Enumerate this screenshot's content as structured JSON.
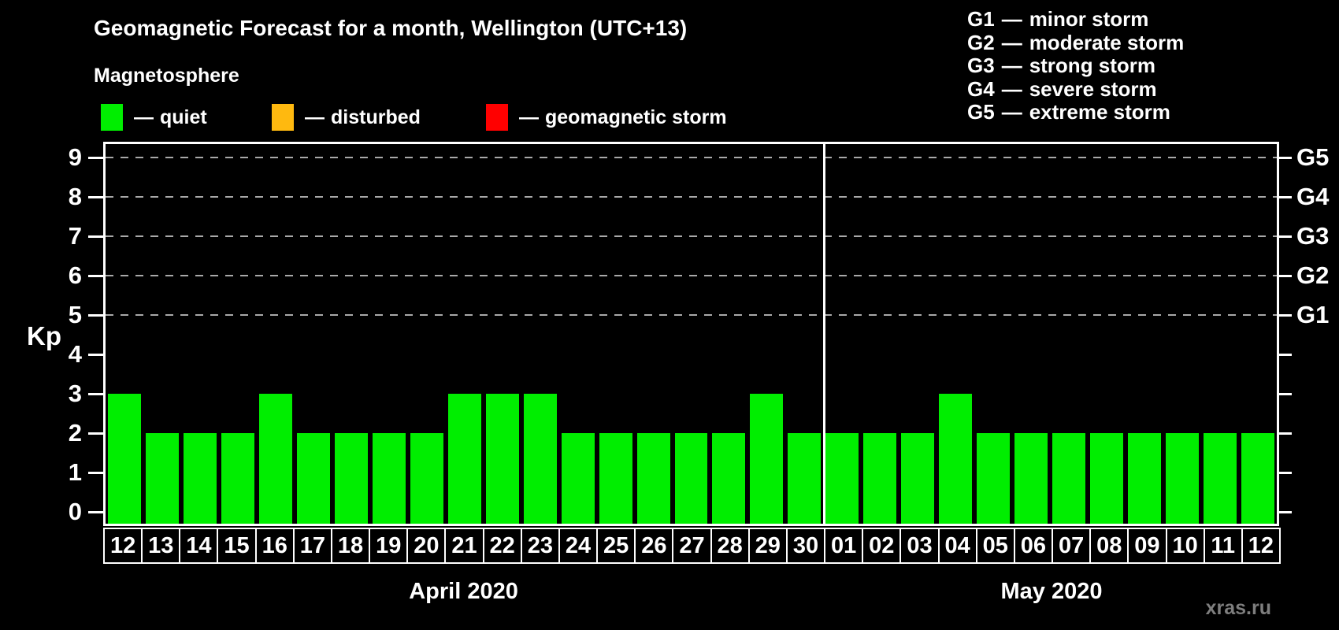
{
  "page": {
    "title": "Geomagnetic Forecast for a month, Wellington (UTC+13)",
    "subtitle": "Magnetosphere",
    "watermark": "xras.ru",
    "dash": "—"
  },
  "legend": [
    {
      "label": "quiet",
      "color": "#00ee00"
    },
    {
      "label": "disturbed",
      "color": "#ffb90f"
    },
    {
      "label": "geomagnetic storm",
      "color": "#ff0000"
    }
  ],
  "storm_scale": [
    {
      "code": "G1",
      "label": "minor storm"
    },
    {
      "code": "G2",
      "label": "moderate storm"
    },
    {
      "code": "G3",
      "label": "strong storm"
    },
    {
      "code": "G4",
      "label": "severe storm"
    },
    {
      "code": "G5",
      "label": "extreme storm"
    }
  ],
  "chart_data": {
    "type": "bar",
    "title": "Geomagnetic Forecast for a month, Wellington (UTC+13)",
    "ylabel": "Kp",
    "ylim": [
      0,
      9.4
    ],
    "y_ticks": [
      0,
      1,
      2,
      3,
      4,
      5,
      6,
      7,
      8,
      9
    ],
    "gridlines_at_kp": [
      5,
      6,
      7,
      8,
      9
    ],
    "grid_style": "dashed horizontal gray lines at Kp 5-9 only",
    "right_axis": [
      {
        "kp": 5,
        "label": "G1"
      },
      {
        "kp": 6,
        "label": "G2"
      },
      {
        "kp": 7,
        "label": "G3"
      },
      {
        "kp": 8,
        "label": "G4"
      },
      {
        "kp": 9,
        "label": "G5"
      }
    ],
    "bar_color": "#00ee00",
    "background_color": "#000000",
    "categories": [
      "12",
      "13",
      "14",
      "15",
      "16",
      "17",
      "18",
      "19",
      "20",
      "21",
      "22",
      "23",
      "24",
      "25",
      "26",
      "27",
      "28",
      "29",
      "30",
      "01",
      "02",
      "03",
      "04",
      "05",
      "06",
      "07",
      "08",
      "09",
      "10",
      "11",
      "12"
    ],
    "values": [
      3,
      2,
      2,
      2,
      3,
      2,
      2,
      2,
      2,
      3,
      3,
      3,
      2,
      2,
      2,
      2,
      2,
      3,
      2,
      2,
      2,
      2,
      3,
      2,
      2,
      2,
      2,
      2,
      2,
      2,
      2
    ],
    "months": [
      {
        "label": "April 2020",
        "day_count": 19
      },
      {
        "label": "May 2020",
        "day_count": 12
      }
    ]
  }
}
